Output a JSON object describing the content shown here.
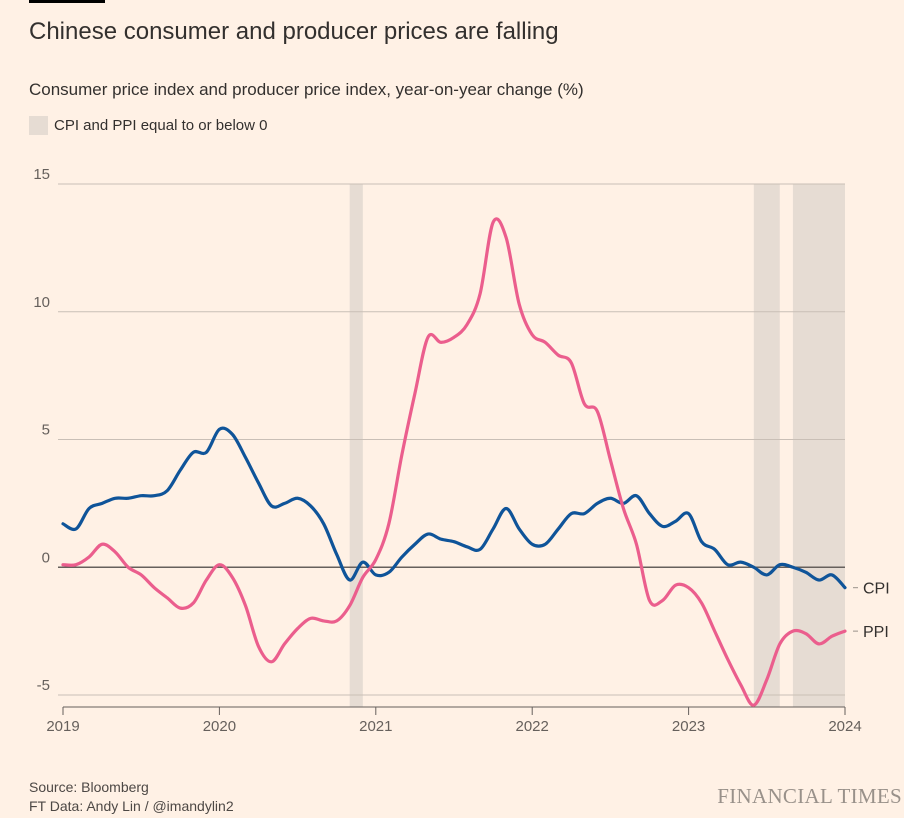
{
  "header": {
    "title": "Chinese consumer and producer prices are falling",
    "subtitle": "Consumer price index and producer price index, year-on-year change (%)",
    "legend_label": "CPI and PPI equal to or below 0"
  },
  "footer": {
    "source": "Source: Bloomberg",
    "credit": "FT Data: Andy Lin / @imandylin2",
    "brand": "FINANCIAL TIMES"
  },
  "colors": {
    "background": "#fff1e5",
    "cpi": "#0f5499",
    "ppi": "#eb5e8d",
    "shade": "#e6dcd3",
    "grid": "#c9bfb6",
    "zero": "#66605c"
  },
  "chart_data": {
    "type": "line",
    "title": "Chinese consumer and producer prices are falling",
    "ylabel": "Year-on-year change (%)",
    "xlabel": "",
    "x_start": 2019.0,
    "x_step_months": 1,
    "xlim": [
      2019,
      2024
    ],
    "ylim": [
      -5,
      15
    ],
    "yticks": [
      15,
      10,
      5,
      0,
      -5
    ],
    "xticks": [
      2019,
      2020,
      2021,
      2022,
      2023,
      2024
    ],
    "grid": true,
    "shaded_periods": [
      [
        2020.833,
        2020.917
      ],
      [
        2023.417,
        2023.583
      ],
      [
        2023.667,
        2024.0
      ]
    ],
    "series": [
      {
        "name": "CPI",
        "values": [
          1.7,
          1.5,
          2.3,
          2.5,
          2.7,
          2.7,
          2.8,
          2.8,
          3.0,
          3.8,
          4.5,
          4.5,
          5.4,
          5.2,
          4.3,
          3.3,
          2.4,
          2.5,
          2.7,
          2.4,
          1.7,
          0.5,
          -0.5,
          0.2,
          -0.3,
          -0.2,
          0.4,
          0.9,
          1.3,
          1.1,
          1.0,
          0.8,
          0.7,
          1.5,
          2.3,
          1.5,
          0.9,
          0.9,
          1.5,
          2.1,
          2.1,
          2.5,
          2.7,
          2.5,
          2.8,
          2.1,
          1.6,
          1.8,
          2.1,
          1.0,
          0.7,
          0.1,
          0.2,
          0.0,
          -0.3,
          0.1,
          0.0,
          -0.2,
          -0.5,
          -0.3,
          -0.8
        ]
      },
      {
        "name": "PPI",
        "values": [
          0.1,
          0.1,
          0.4,
          0.9,
          0.6,
          0.0,
          -0.3,
          -0.8,
          -1.2,
          -1.6,
          -1.4,
          -0.5,
          0.1,
          -0.4,
          -1.5,
          -3.1,
          -3.7,
          -3.0,
          -2.4,
          -2.0,
          -2.1,
          -2.1,
          -1.5,
          -0.4,
          0.3,
          1.7,
          4.4,
          6.8,
          9.0,
          8.8,
          9.0,
          9.5,
          10.7,
          13.5,
          12.9,
          10.3,
          9.1,
          8.8,
          8.3,
          8.0,
          6.4,
          6.1,
          4.2,
          2.3,
          0.9,
          -1.3,
          -1.3,
          -0.7,
          -0.8,
          -1.4,
          -2.5,
          -3.6,
          -4.6,
          -5.4,
          -4.4,
          -3.0,
          -2.5,
          -2.6,
          -3.0,
          -2.7,
          -2.5
        ]
      }
    ]
  }
}
